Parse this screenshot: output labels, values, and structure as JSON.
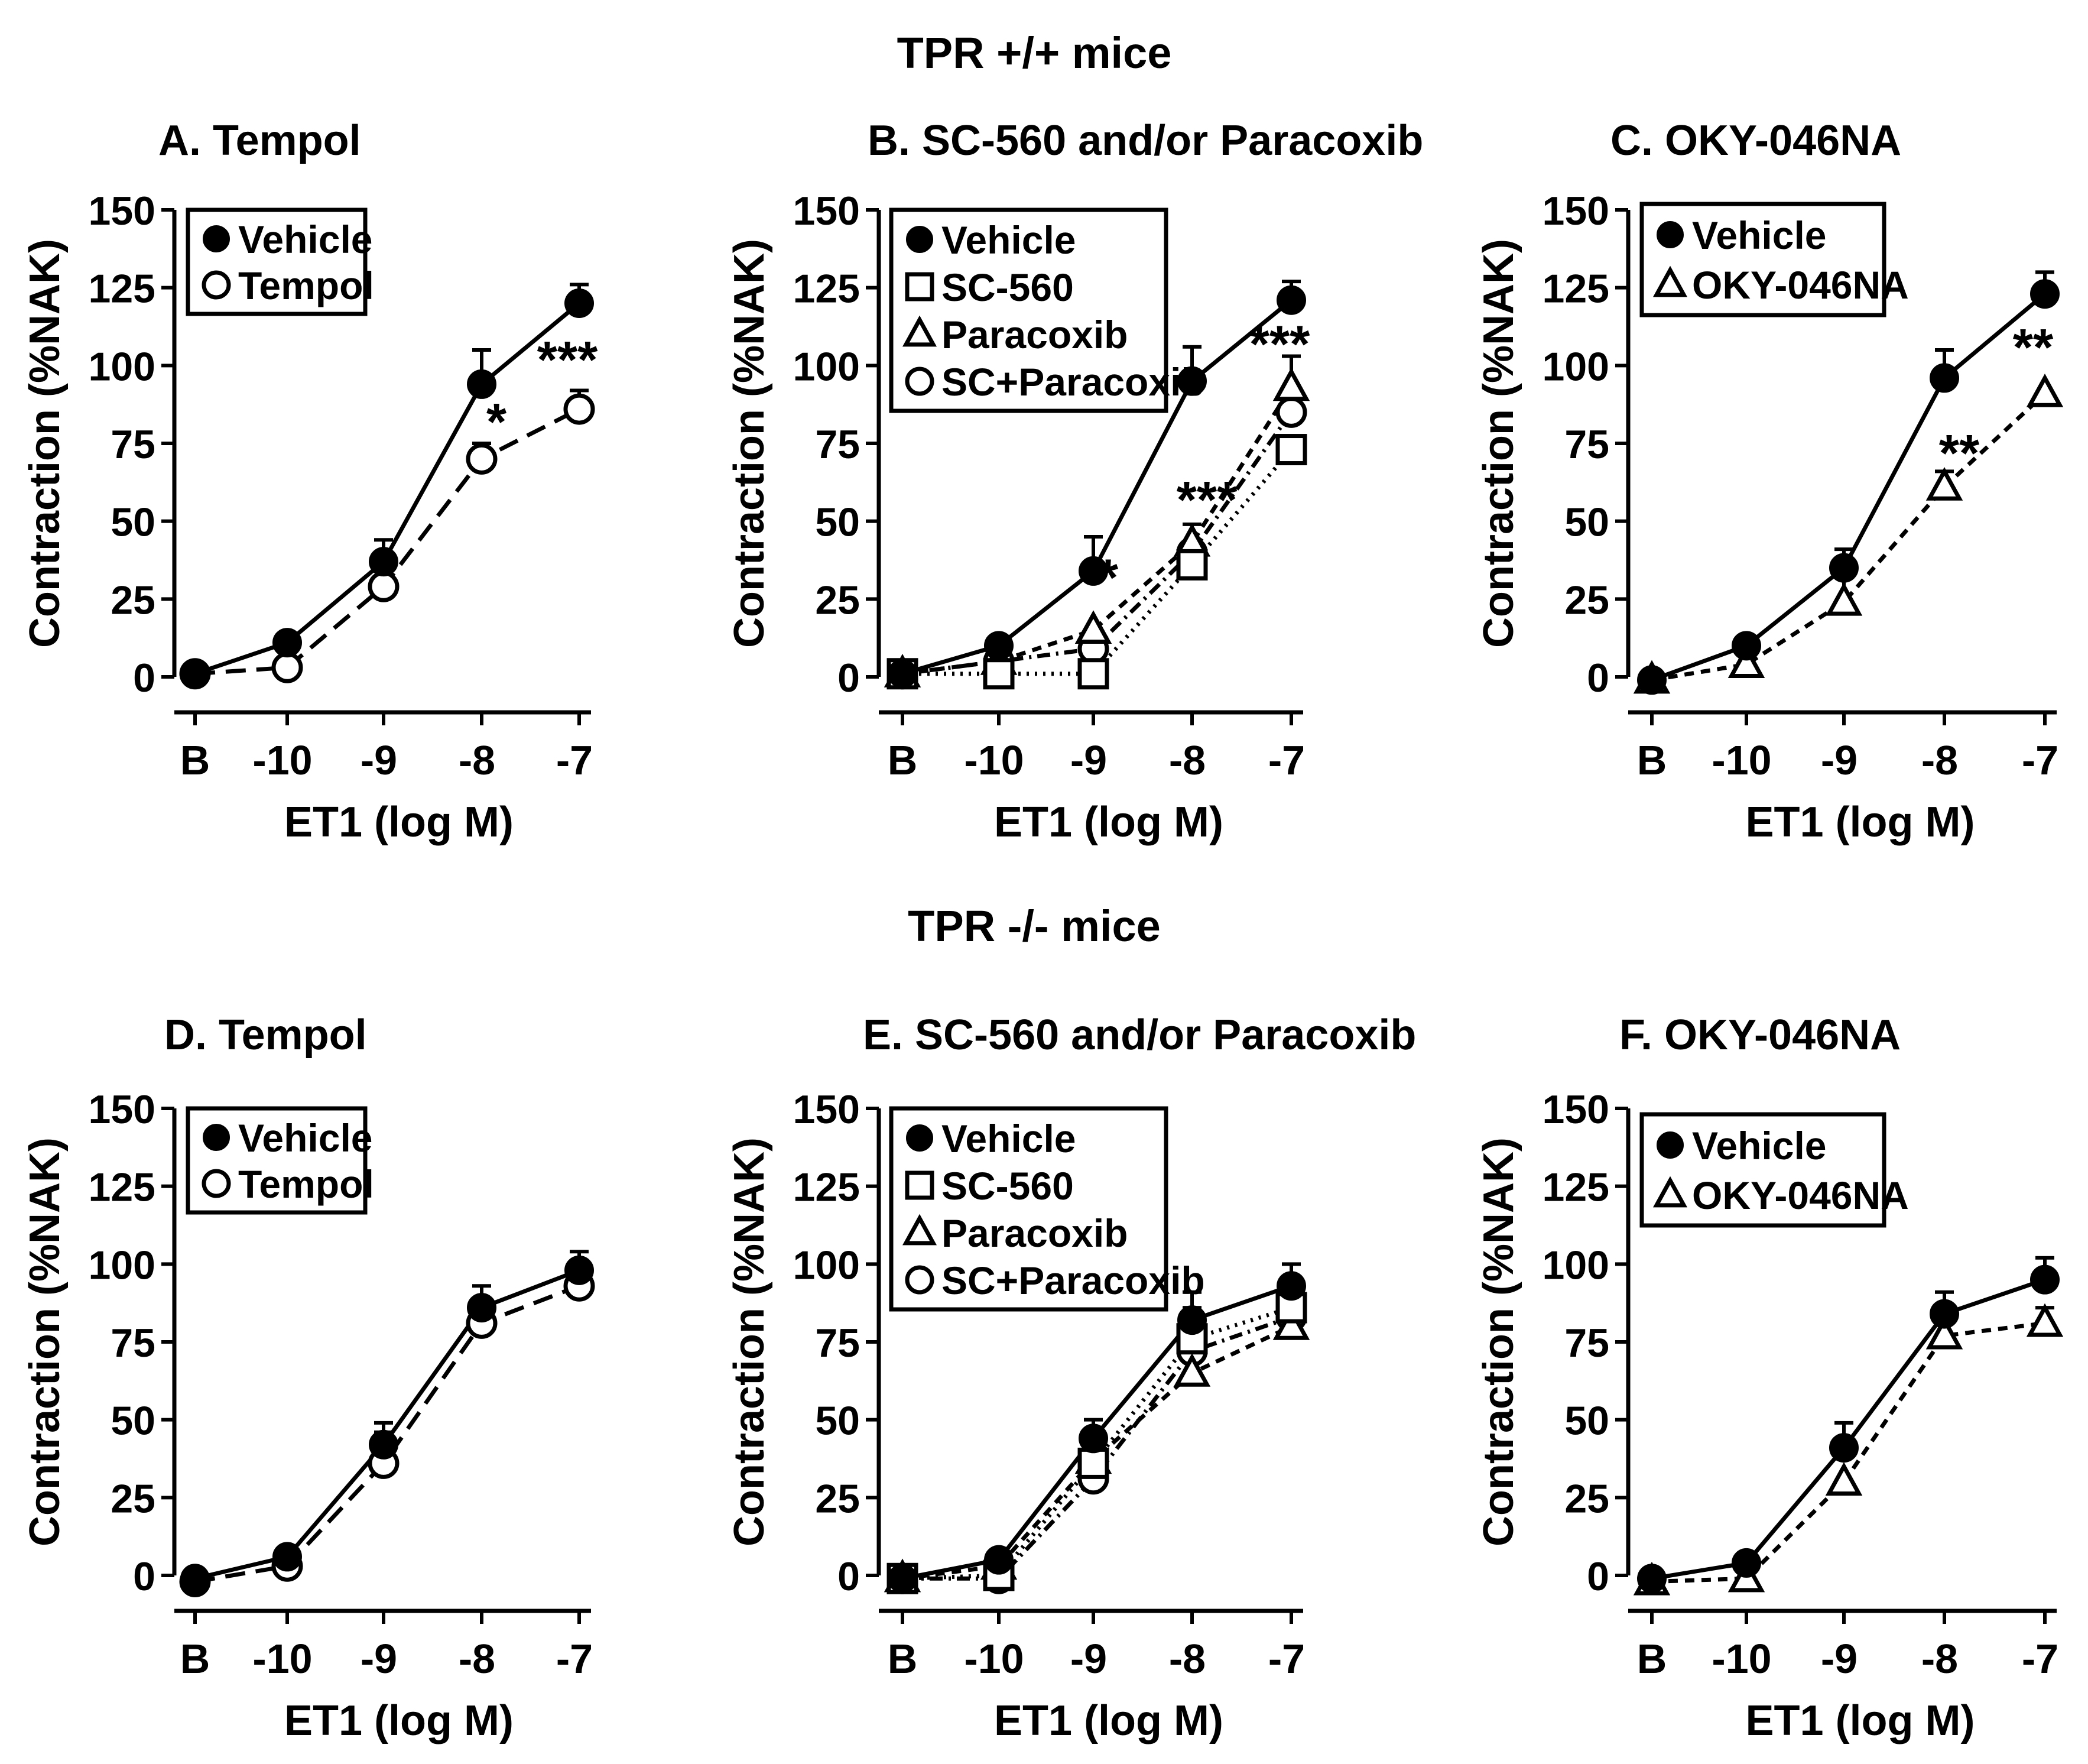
{
  "figure": {
    "top_heading": "TPR +/+ mice",
    "bottom_heading": "TPR -/- mice",
    "colors": {
      "ink": "#000000",
      "background": "#ffffff"
    }
  },
  "chart_data": [
    {
      "type": "line",
      "panel": "A",
      "title": "A.  Tempol",
      "xlabel": "ET1 (log M)",
      "ylabel": "Contraction (%NAK)",
      "categories": [
        "B",
        "-10",
        "-9",
        "-8",
        "-7"
      ],
      "yticks": [
        "0",
        "25",
        "50",
        "75",
        "100",
        "125",
        "150"
      ],
      "ylim": [
        0,
        150
      ],
      "series": [
        {
          "name": "Vehicle",
          "marker": "filled-circle",
          "dash": "solid",
          "values": [
            1,
            11,
            37,
            94,
            120
          ],
          "errors": [
            0,
            0,
            7,
            11,
            6
          ]
        },
        {
          "name": "Tempol",
          "marker": "open-circle",
          "dash": "longdash",
          "values": [
            1,
            3,
            29,
            70,
            86
          ],
          "errors": [
            0,
            0,
            0,
            5,
            6
          ]
        }
      ],
      "annotations": [
        {
          "text": "*",
          "category": "-8",
          "y": 80
        },
        {
          "text": "***",
          "category": "-7",
          "y": 100
        }
      ]
    },
    {
      "type": "line",
      "panel": "B",
      "title": "B.  SC-560 and/or Paracoxib",
      "xlabel": "ET1 (log M)",
      "ylabel": "Contraction (%NAK)",
      "categories": [
        "B",
        "-10",
        "-9",
        "-8",
        "-7"
      ],
      "yticks": [
        "0",
        "25",
        "50",
        "75",
        "100",
        "125",
        "150"
      ],
      "ylim": [
        0,
        150
      ],
      "series": [
        {
          "name": "Vehicle",
          "marker": "filled-circle",
          "dash": "solid",
          "values": [
            1,
            10,
            34,
            95,
            121
          ],
          "errors": [
            0,
            0,
            11,
            11,
            6
          ]
        },
        {
          "name": "SC-560",
          "marker": "open-square",
          "dash": "dotted",
          "values": [
            1,
            1,
            1,
            36,
            73
          ],
          "errors": [
            0,
            0,
            0,
            0,
            0
          ]
        },
        {
          "name": "Paracoxib",
          "marker": "open-triangle",
          "dash": "shortdash",
          "values": [
            1,
            5,
            15,
            43,
            93
          ],
          "errors": [
            0,
            0,
            0,
            6,
            10
          ]
        },
        {
          "name": "SC+Paracoxib",
          "marker": "open-circle",
          "dash": "dashdot",
          "values": [
            1,
            5,
            9,
            40,
            85
          ],
          "errors": [
            0,
            0,
            0,
            0,
            0
          ]
        }
      ],
      "annotations": [
        {
          "text": "*",
          "category": "-9",
          "y": 30
        },
        {
          "text": "***",
          "category": "-8",
          "y": 55
        },
        {
          "text": "***",
          "category": "-7",
          "y": 105
        }
      ]
    },
    {
      "type": "line",
      "panel": "C",
      "title": "C.  OKY-046NA",
      "xlabel": "ET1 (log M)",
      "ylabel": "Contraction (%NAK)",
      "categories": [
        "B",
        "-10",
        "-9",
        "-8",
        "-7"
      ],
      "yticks": [
        "0",
        "25",
        "50",
        "75",
        "100",
        "125",
        "150"
      ],
      "ylim": [
        0,
        150
      ],
      "series": [
        {
          "name": "Vehicle",
          "marker": "filled-circle",
          "dash": "solid",
          "values": [
            -1,
            10,
            35,
            96,
            123
          ],
          "errors": [
            0,
            0,
            6,
            9,
            7
          ]
        },
        {
          "name": "OKY-046NA",
          "marker": "open-triangle",
          "dash": "shortdash",
          "values": [
            -1,
            4,
            24,
            61,
            91
          ],
          "errors": [
            0,
            5,
            11,
            5,
            0
          ]
        }
      ],
      "annotations": [
        {
          "text": "**",
          "category": "-8",
          "y": 70
        },
        {
          "text": "**",
          "category": "-7",
          "y": 104
        }
      ]
    },
    {
      "type": "line",
      "panel": "D",
      "title": "D.  Tempol",
      "xlabel": "ET1 (log M)",
      "ylabel": "Contraction (%NAK)",
      "categories": [
        "B",
        "-10",
        "-9",
        "-8",
        "-7"
      ],
      "yticks": [
        "0",
        "25",
        "50",
        "75",
        "100",
        "125",
        "150"
      ],
      "ylim": [
        0,
        150
      ],
      "series": [
        {
          "name": "Vehicle",
          "marker": "filled-circle",
          "dash": "solid",
          "values": [
            -1,
            6,
            42,
            86,
            98
          ],
          "errors": [
            0,
            0,
            7,
            7,
            6
          ]
        },
        {
          "name": "Tempol",
          "marker": "open-circle",
          "dash": "longdash",
          "values": [
            -2,
            3,
            36,
            81,
            93
          ],
          "errors": [
            0,
            0,
            10,
            0,
            0
          ]
        }
      ],
      "annotations": []
    },
    {
      "type": "line",
      "panel": "E",
      "title": "E.  SC-560 and/or Paracoxib",
      "xlabel": "ET1 (log M)",
      "ylabel": "Contraction (%NAK)",
      "categories": [
        "B",
        "-10",
        "-9",
        "-8",
        "-7"
      ],
      "yticks": [
        "0",
        "25",
        "50",
        "75",
        "100",
        "125",
        "150"
      ],
      "ylim": [
        0,
        150
      ],
      "series": [
        {
          "name": "Vehicle",
          "marker": "filled-circle",
          "dash": "solid",
          "values": [
            -1,
            5,
            44,
            82,
            93
          ],
          "errors": [
            0,
            0,
            6,
            9,
            7
          ]
        },
        {
          "name": "SC-560",
          "marker": "open-square",
          "dash": "dotted",
          "values": [
            -1,
            0,
            36,
            76,
            86
          ],
          "errors": [
            0,
            0,
            0,
            0,
            0
          ]
        },
        {
          "name": "Paracoxib",
          "marker": "open-triangle",
          "dash": "shortdash",
          "values": [
            -1,
            3,
            37,
            65,
            80
          ],
          "errors": [
            0,
            0,
            0,
            21,
            14
          ]
        },
        {
          "name": "SC+Paracoxib",
          "marker": "open-circle",
          "dash": "dashdot",
          "values": [
            -1,
            -1,
            31,
            72,
            83
          ],
          "errors": [
            0,
            0,
            0,
            0,
            0
          ]
        }
      ],
      "annotations": []
    },
    {
      "type": "line",
      "panel": "F",
      "title": "F.  OKY-046NA",
      "xlabel": "ET1 (log M)",
      "ylabel": "Contraction (%NAK)",
      "categories": [
        "B",
        "-10",
        "-9",
        "-8",
        "-7"
      ],
      "yticks": [
        "0",
        "25",
        "50",
        "75",
        "100",
        "125",
        "150"
      ],
      "ylim": [
        0,
        150
      ],
      "series": [
        {
          "name": "Vehicle",
          "marker": "filled-circle",
          "dash": "solid",
          "values": [
            -1,
            4,
            41,
            84,
            95
          ],
          "errors": [
            0,
            0,
            8,
            7,
            7
          ]
        },
        {
          "name": "OKY-046NA",
          "marker": "open-triangle",
          "dash": "shortdash",
          "values": [
            -2,
            -1,
            30,
            77,
            81
          ],
          "errors": [
            0,
            0,
            0,
            9,
            5
          ]
        }
      ],
      "annotations": []
    }
  ]
}
